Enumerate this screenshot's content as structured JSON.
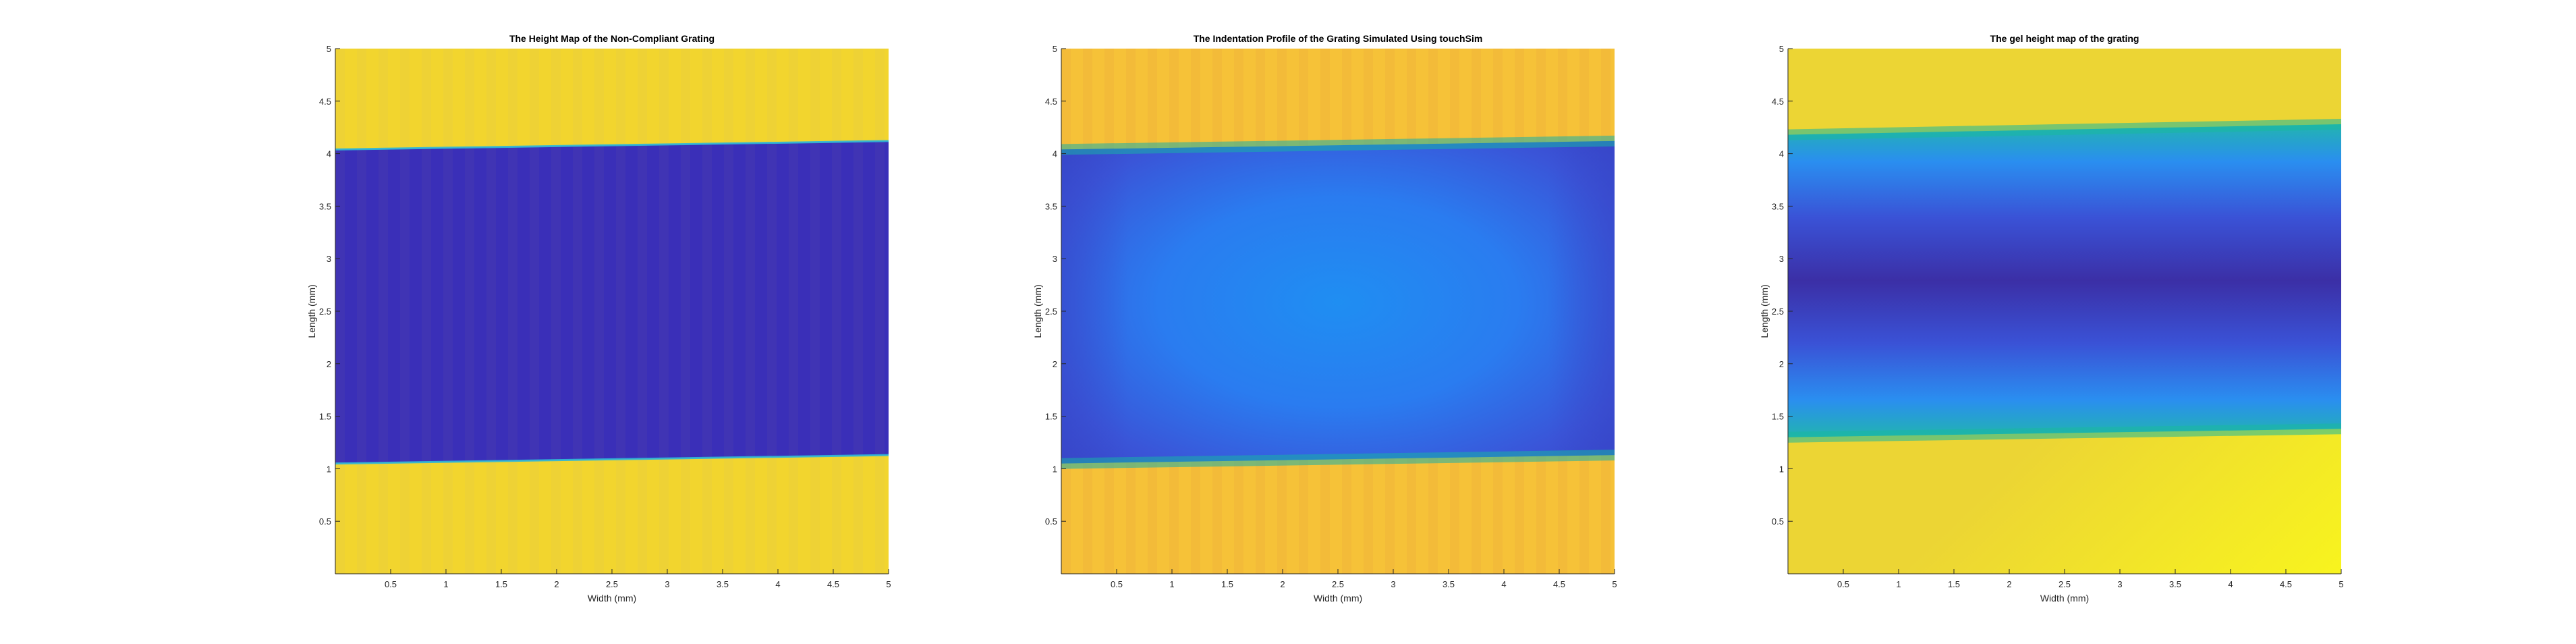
{
  "chart_data": [
    {
      "type": "heatmap",
      "title": "The Height Map of the Non-Compliant Grating",
      "xlabel": "Width (mm)",
      "ylabel": "Length (mm)",
      "xlim": [
        0,
        5
      ],
      "ylim": [
        0,
        5
      ],
      "xticks": [
        "0.5",
        "1",
        "1.5",
        "2",
        "2.5",
        "3",
        "3.5",
        "4",
        "4.5",
        "5"
      ],
      "yticks": [
        "0.5",
        "1",
        "1.5",
        "2",
        "2.5",
        "3",
        "3.5",
        "4",
        "4.5",
        "5"
      ],
      "colormap": "parula",
      "groove": {
        "y_bottom": [
          1.05,
          1.13
        ],
        "y_top": [
          4.04,
          4.12
        ],
        "edge": "sharp",
        "bottom_shading": "uniform"
      },
      "colors": {
        "ridge": "#f2d52e",
        "ridge_alt": "#ead03a",
        "groove": "#3a2fb8",
        "groove_deep": "#352aa8",
        "edge": "#2fb8d8"
      }
    },
    {
      "type": "heatmap",
      "title": "The Indentation Profile of the Grating Simulated Using touchSim",
      "xlabel": "Width (mm)",
      "ylabel": "Length (mm)",
      "xlim": [
        0,
        5
      ],
      "ylim": [
        0,
        5
      ],
      "xticks": [
        "0.5",
        "1",
        "1.5",
        "2",
        "2.5",
        "3",
        "3.5",
        "4",
        "4.5",
        "5"
      ],
      "yticks": [
        "0.5",
        "1",
        "1.5",
        "2",
        "2.5",
        "3",
        "3.5",
        "4",
        "4.5",
        "5"
      ],
      "colormap": "parula",
      "groove": {
        "y_bottom": [
          1.05,
          1.13
        ],
        "y_top": [
          4.04,
          4.12
        ],
        "edge": "soft",
        "bottom_shading": "hourglass"
      },
      "colors": {
        "ridge": "#f6c238",
        "ridge_alt": "#f0b63a",
        "groove": "#2c8cf0",
        "groove_deep": "#3845c8",
        "edge": "#17b0a8"
      }
    },
    {
      "type": "heatmap",
      "title": "The gel height map of the grating",
      "xlabel": "Width (mm)",
      "ylabel": "Length (mm)",
      "xlim": [
        0,
        5
      ],
      "ylim": [
        0,
        5
      ],
      "xticks": [
        "0.5",
        "1",
        "1.5",
        "2",
        "2.5",
        "3",
        "3.5",
        "4",
        "4.5",
        "5"
      ],
      "yticks": [
        "0.5",
        "1",
        "1.5",
        "2",
        "2.5",
        "3",
        "3.5",
        "4",
        "4.5",
        "5"
      ],
      "colormap": "parula",
      "groove": {
        "y_bottom": [
          1.3,
          1.38
        ],
        "y_top": [
          4.18,
          4.28
        ],
        "edge": "soft",
        "bottom_shading": "band"
      },
      "colors": {
        "ridge": "#ecd534",
        "ridge_alt": "#f8f41e",
        "groove": "#2e6ff0",
        "groove_deep": "#3b2fa6",
        "edge": "#1ab8a0"
      }
    }
  ]
}
